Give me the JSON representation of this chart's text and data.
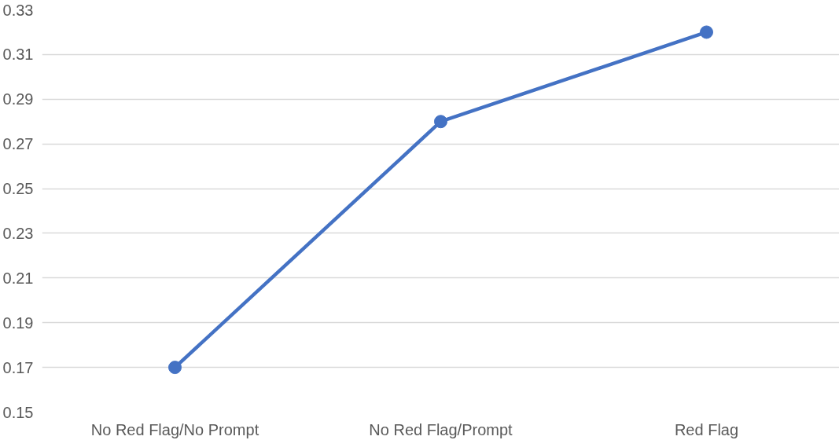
{
  "chart_data": {
    "type": "line",
    "categories": [
      "No Red Flag/No Prompt",
      "No Red Flag/Prompt",
      "Red Flag"
    ],
    "series": [
      {
        "color": "#4472c4",
        "values": [
          0.17,
          0.28,
          0.32
        ]
      }
    ],
    "ylim": [
      0.15,
      0.33
    ],
    "yticks": [
      0.15,
      0.17,
      0.19,
      0.21,
      0.23,
      0.25,
      0.27,
      0.29,
      0.31,
      0.33
    ],
    "grid": "y",
    "marker": "circle",
    "line_style": "solid"
  }
}
